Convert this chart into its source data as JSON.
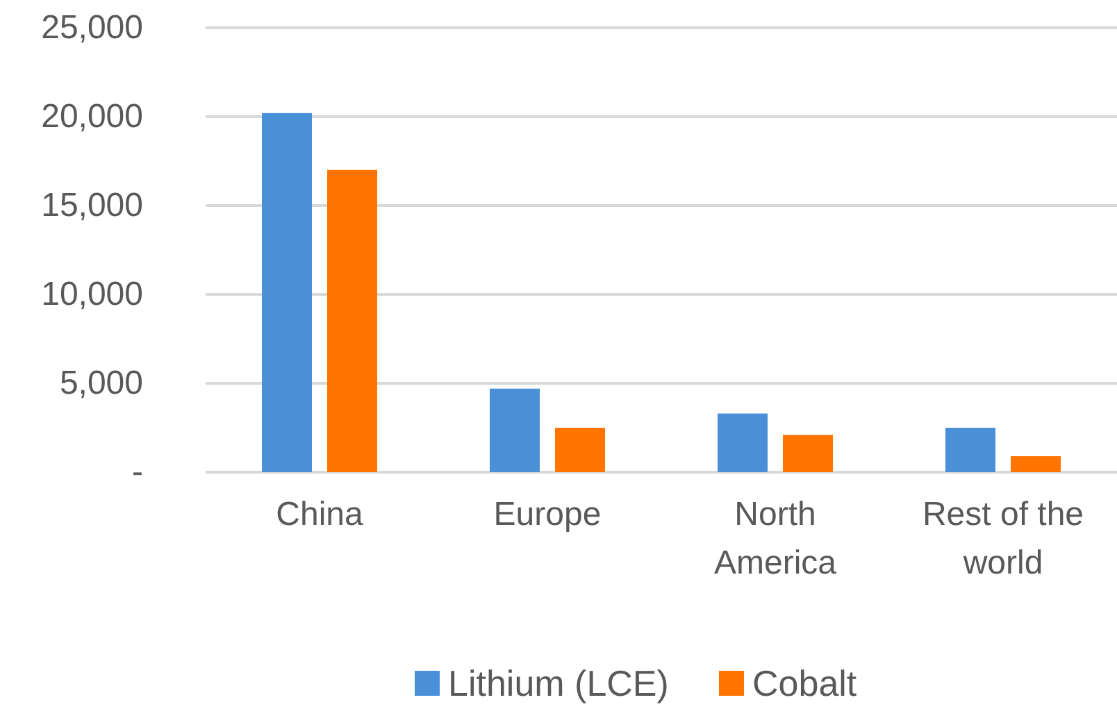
{
  "chart_data": {
    "type": "bar",
    "categories": [
      "China",
      "Europe",
      "North America",
      "Rest of the world"
    ],
    "series": [
      {
        "name": "Lithium (LCE)",
        "color": "#4a90d9",
        "values": [
          20200,
          4700,
          3300,
          2500
        ]
      },
      {
        "name": "Cobalt",
        "color": "#ff7500",
        "values": [
          17000,
          2500,
          2100,
          900
        ]
      }
    ],
    "ylim": [
      0,
      25000
    ],
    "yticks": [
      {
        "value": 0,
        "label": "-"
      },
      {
        "value": 5000,
        "label": "5,000"
      },
      {
        "value": 10000,
        "label": "10,000"
      },
      {
        "value": 15000,
        "label": "15,000"
      },
      {
        "value": 20000,
        "label": "20,000"
      },
      {
        "value": 25000,
        "label": "25,000"
      }
    ],
    "grid": "y",
    "legend": "bottom"
  }
}
